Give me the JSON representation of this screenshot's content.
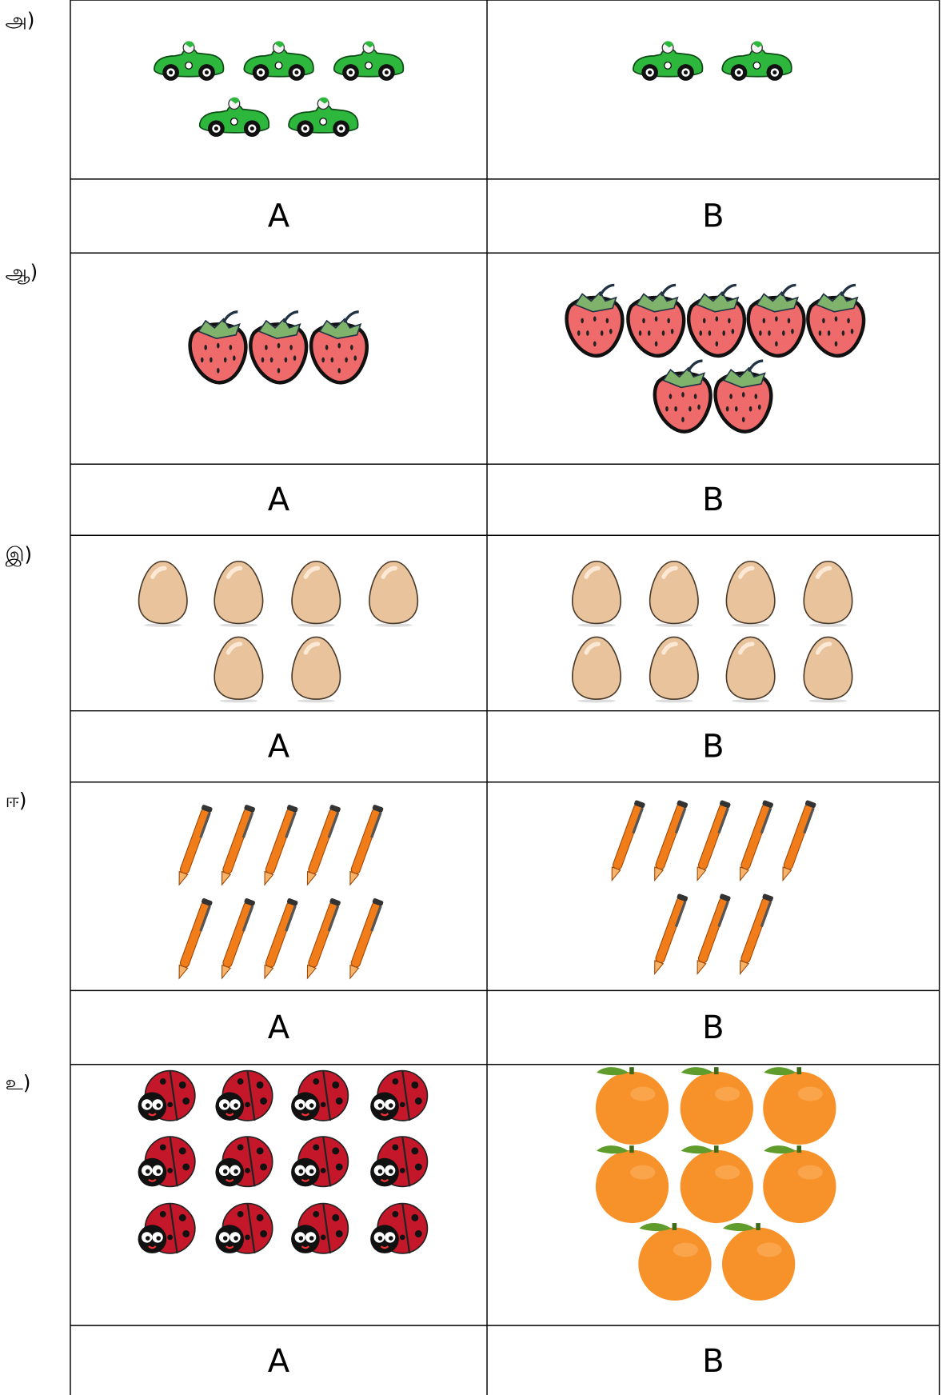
{
  "rows": [
    {
      "label": "அ)",
      "left": "A",
      "right": "B"
    },
    {
      "label": "ஆ)",
      "left": "A",
      "right": "B"
    },
    {
      "label": "இ)",
      "left": "A",
      "right": "B"
    },
    {
      "label": "ஈ)",
      "left": "A",
      "right": "B"
    },
    {
      "label": "உ)",
      "left": "A",
      "right": "B"
    }
  ]
}
